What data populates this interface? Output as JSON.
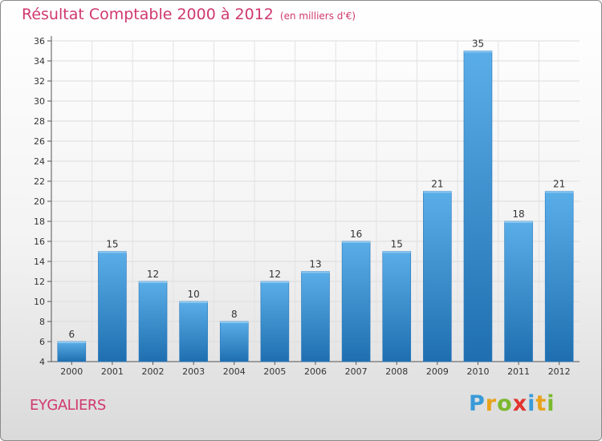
{
  "title": "Résultat Comptable 2000 à 2012",
  "title_unit": "(en milliers d'€)",
  "commune": "EYGALIERS",
  "logo": {
    "p": "P",
    "r": "r",
    "o": "o",
    "x": "x",
    "i1": "i",
    "t": "t",
    "i2": "i"
  },
  "colors": {
    "title": "#d0386f",
    "bar_light": "#5aaee8",
    "bar_dark": "#1f6fb0"
  },
  "chart_data": {
    "type": "bar",
    "title": "Résultat Comptable 2000 à 2012",
    "xlabel": "",
    "ylabel": "",
    "ylim": [
      4,
      36
    ],
    "ytick_step": 2,
    "grid": true,
    "categories": [
      "2000",
      "2001",
      "2002",
      "2003",
      "2004",
      "2005",
      "2006",
      "2007",
      "2008",
      "2009",
      "2010",
      "2011",
      "2012"
    ],
    "values": [
      6,
      15,
      12,
      10,
      8,
      12,
      13,
      16,
      15,
      21,
      35,
      18,
      21
    ]
  }
}
